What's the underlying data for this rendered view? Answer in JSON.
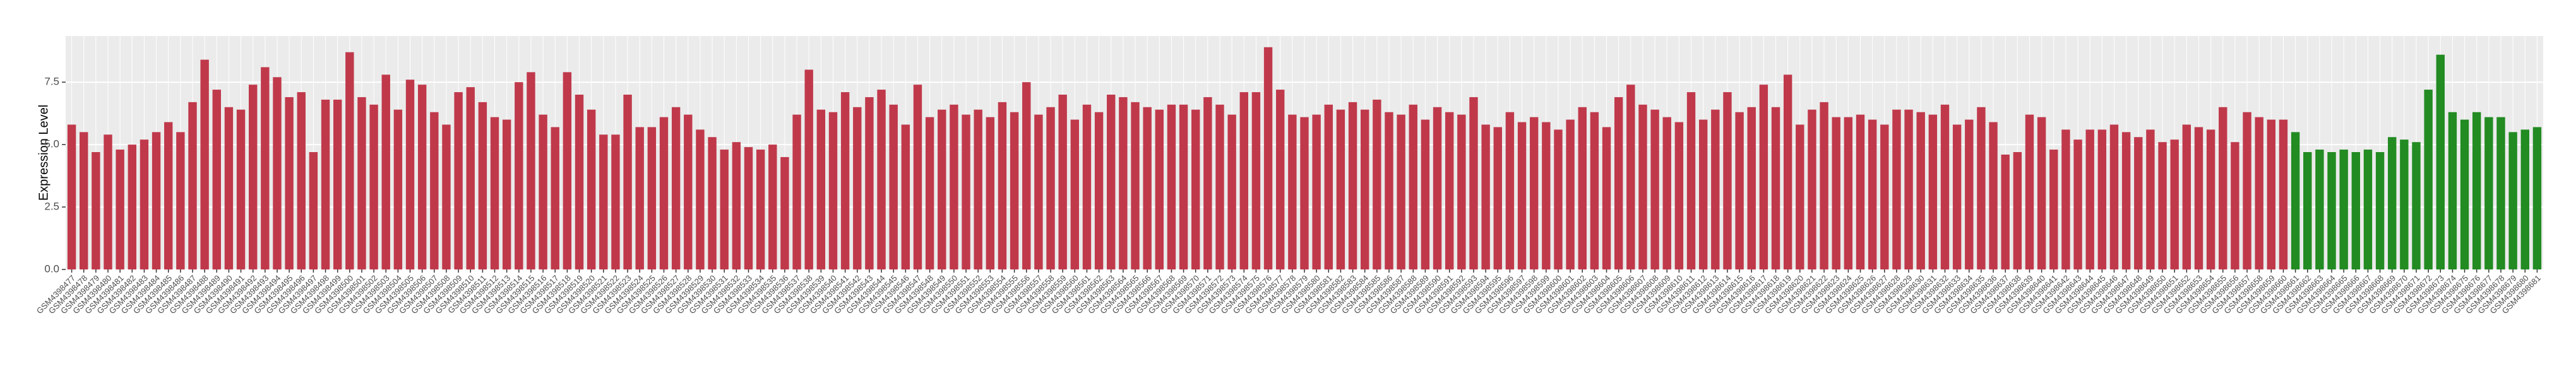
{
  "chart_data": {
    "type": "bar",
    "y_label": "Expression Level",
    "categories": [
      "GSM4398477",
      "GSM4398478",
      "GSM4398479",
      "GSM4398480",
      "GSM4398481",
      "GSM4398482",
      "GSM4398483",
      "GSM4398484",
      "GSM4398485",
      "GSM4398486",
      "GSM4398487",
      "GSM4398488",
      "GSM4398489",
      "GSM4398490",
      "GSM4398491",
      "GSM4398492",
      "GSM4398493",
      "GSM4398494",
      "GSM4398495",
      "GSM4398496",
      "GSM4398497",
      "GSM4398498",
      "GSM4398499",
      "GSM4398500",
      "GSM4398501",
      "GSM4398502",
      "GSM4398503",
      "GSM4398504",
      "GSM4398505",
      "GSM4398506",
      "GSM4398507",
      "GSM4398508",
      "GSM4398509",
      "GSM4398510",
      "GSM4398511",
      "GSM4398512",
      "GSM4398513",
      "GSM4398514",
      "GSM4398515",
      "GSM4398516",
      "GSM4398517",
      "GSM4398518",
      "GSM4398519",
      "GSM4398520",
      "GSM4398521",
      "GSM4398522",
      "GSM4398523",
      "GSM4398524",
      "GSM4398525",
      "GSM4398526",
      "GSM4398527",
      "GSM4398528",
      "GSM4398529",
      "GSM4398530",
      "GSM4398531",
      "GSM4398532",
      "GSM4398533",
      "GSM4398534",
      "GSM4398535",
      "GSM4398536",
      "GSM4398537",
      "GSM4398538",
      "GSM4398539",
      "GSM4398540",
      "GSM4398541",
      "GSM4398542",
      "GSM4398543",
      "GSM4398544",
      "GSM4398545",
      "GSM4398546",
      "GSM4398547",
      "GSM4398548",
      "GSM4398549",
      "GSM4398550",
      "GSM4398551",
      "GSM4398552",
      "GSM4398553",
      "GSM4398554",
      "GSM4398555",
      "GSM4398556",
      "GSM4398557",
      "GSM4398558",
      "GSM4398559",
      "GSM4398560",
      "GSM4398561",
      "GSM4398562",
      "GSM4398563",
      "GSM4398564",
      "GSM4398565",
      "GSM4398566",
      "GSM4398567",
      "GSM4398568",
      "GSM4398569",
      "GSM4398570",
      "GSM4398571",
      "GSM4398572",
      "GSM4398573",
      "GSM4398574",
      "GSM4398575",
      "GSM4398576",
      "GSM4398577",
      "GSM4398578",
      "GSM4398579",
      "GSM4398580",
      "GSM4398581",
      "GSM4398582",
      "GSM4398583",
      "GSM4398584",
      "GSM4398585",
      "GSM4398586",
      "GSM4398587",
      "GSM4398588",
      "GSM4398589",
      "GSM4398590",
      "GSM4398591",
      "GSM4398592",
      "GSM4398593",
      "GSM4398594",
      "GSM4398595",
      "GSM4398596",
      "GSM4398597",
      "GSM4398598",
      "GSM4398599",
      "GSM4398600",
      "GSM4398601",
      "GSM4398602",
      "GSM4398603",
      "GSM4398604",
      "GSM4398605",
      "GSM4398606",
      "GSM4398607",
      "GSM4398608",
      "GSM4398609",
      "GSM4398610",
      "GSM4398611",
      "GSM4398612",
      "GSM4398613",
      "GSM4398614",
      "GSM4398615",
      "GSM4398616",
      "GSM4398617",
      "GSM4398618",
      "GSM4398619",
      "GSM4398620",
      "GSM4398621",
      "GSM4398622",
      "GSM4398623",
      "GSM4398624",
      "GSM4398625",
      "GSM4398626",
      "GSM4398627",
      "GSM4398628",
      "GSM4398629",
      "GSM4398630",
      "GSM4398631",
      "GSM4398632",
      "GSM4398633",
      "GSM4398634",
      "GSM4398635",
      "GSM4398636",
      "GSM4398637",
      "GSM4398638",
      "GSM4398639",
      "GSM4398640",
      "GSM4398641",
      "GSM4398642",
      "GSM4398643",
      "GSM4398644",
      "GSM4398645",
      "GSM4398646",
      "GSM4398647",
      "GSM4398648",
      "GSM4398649",
      "GSM4398650",
      "GSM4398651",
      "GSM4398652",
      "GSM4398653",
      "GSM4398654",
      "GSM4398655",
      "GSM4398656",
      "GSM4398657",
      "GSM4398658",
      "GSM4398659",
      "GSM4398660",
      "GSM4398661",
      "GSM4398662",
      "GSM4398663",
      "GSM4398664",
      "GSM4398665",
      "GSM4398666",
      "GSM4398667",
      "GSM4398668",
      "GSM4398669",
      "GSM4398670",
      "GSM4398671",
      "GSM4398672",
      "GSM4398673",
      "GSM4398674",
      "GSM4398675",
      "GSM4398676",
      "GSM4398677",
      "GSM4398678",
      "GSM4398679",
      "GSM4398680",
      "GSM4398681"
    ],
    "series": [
      {
        "color": "#c0394b",
        "values": [
          5.8,
          5.5,
          4.7,
          5.4,
          4.8,
          5.0,
          5.2,
          5.5,
          5.9,
          5.5,
          6.7,
          8.4,
          7.2,
          6.5,
          6.4,
          7.4,
          8.1,
          7.7,
          6.9,
          7.1,
          4.7,
          6.8,
          6.8,
          8.7,
          6.9,
          6.6,
          7.8,
          6.4,
          7.6,
          7.4,
          6.3,
          5.8,
          7.1,
          7.3,
          6.7,
          6.1,
          6.0,
          7.5,
          7.9,
          6.2,
          5.7,
          7.9,
          7.0,
          6.4,
          5.4,
          5.4,
          7.0,
          5.7,
          5.7,
          6.1,
          6.5,
          6.2,
          5.6,
          5.3,
          4.8,
          5.1,
          4.9,
          4.8,
          5.0,
          4.5,
          6.2,
          8.0,
          6.4,
          6.3,
          7.1,
          6.5,
          6.9,
          7.2,
          6.6,
          5.8,
          7.4,
          6.1,
          6.4,
          6.6,
          6.2,
          6.4,
          6.1,
          6.7,
          6.3,
          7.5,
          6.2,
          6.5,
          7.0,
          6.0,
          6.6,
          6.3,
          7.0,
          6.9,
          6.7,
          6.5,
          6.4,
          6.6,
          6.6,
          6.4,
          6.9,
          6.6,
          6.2,
          7.1,
          7.1,
          8.9,
          7.2,
          6.2,
          6.1,
          6.2,
          6.6,
          6.4,
          6.7,
          6.4,
          6.8,
          6.3,
          6.2,
          6.6,
          6.0,
          6.5,
          6.3,
          6.2,
          6.9,
          5.8,
          5.7,
          6.3,
          5.9,
          6.1,
          5.9,
          5.6,
          6.0,
          6.5,
          6.3,
          5.7,
          6.9,
          7.4,
          6.6,
          6.4,
          6.1,
          5.9,
          7.1,
          6.0,
          6.4,
          7.1,
          6.3,
          6.5,
          7.4,
          6.5,
          7.8,
          5.8,
          6.4,
          6.7,
          6.1,
          6.1,
          6.2,
          6.0,
          5.8,
          6.4,
          6.4,
          6.3,
          6.2,
          6.6,
          5.8,
          6.0,
          6.5,
          5.9,
          4.6,
          4.7,
          6.2,
          6.1,
          4.8,
          5.6,
          5.2,
          5.6,
          5.6,
          5.8,
          5.5,
          5.3,
          5.6,
          5.1,
          5.2,
          5.8,
          5.7,
          5.6,
          6.5,
          5.1,
          6.3,
          6.1,
          6.0,
          6.0,
          null,
          null,
          null,
          null,
          null,
          null,
          null,
          null,
          null,
          null,
          null,
          null,
          null,
          null,
          null,
          null,
          null,
          null,
          null,
          null,
          null
        ]
      },
      {
        "color": "#228b22",
        "values": [
          null,
          null,
          null,
          null,
          null,
          null,
          null,
          null,
          null,
          null,
          null,
          null,
          null,
          null,
          null,
          null,
          null,
          null,
          null,
          null,
          null,
          null,
          null,
          null,
          null,
          null,
          null,
          null,
          null,
          null,
          null,
          null,
          null,
          null,
          null,
          null,
          null,
          null,
          null,
          null,
          null,
          null,
          null,
          null,
          null,
          null,
          null,
          null,
          null,
          null,
          null,
          null,
          null,
          null,
          null,
          null,
          null,
          null,
          null,
          null,
          null,
          null,
          null,
          null,
          null,
          null,
          null,
          null,
          null,
          null,
          null,
          null,
          null,
          null,
          null,
          null,
          null,
          null,
          null,
          null,
          null,
          null,
          null,
          null,
          null,
          null,
          null,
          null,
          null,
          null,
          null,
          null,
          null,
          null,
          null,
          null,
          null,
          null,
          null,
          null,
          null,
          null,
          null,
          null,
          null,
          null,
          null,
          null,
          null,
          null,
          null,
          null,
          null,
          null,
          null,
          null,
          null,
          null,
          null,
          null,
          null,
          null,
          null,
          null,
          null,
          null,
          null,
          null,
          null,
          null,
          null,
          null,
          null,
          null,
          null,
          null,
          null,
          null,
          null,
          null,
          null,
          null,
          null,
          null,
          null,
          null,
          null,
          null,
          null,
          null,
          null,
          null,
          null,
          null,
          null,
          null,
          null,
          null,
          null,
          null,
          null,
          null,
          null,
          null,
          null,
          null,
          null,
          null,
          null,
          null,
          null,
          null,
          null,
          null,
          null,
          null,
          null,
          null,
          null,
          null,
          null,
          null,
          null,
          null,
          5.5,
          4.7,
          4.8,
          4.7,
          4.8,
          4.7,
          4.8,
          4.7,
          5.3,
          5.2,
          5.1,
          7.2,
          8.6,
          6.3,
          6.0,
          6.3,
          6.1,
          6.1,
          5.5,
          5.6,
          5.7
        ]
      }
    ],
    "ylim": [
      0,
      9.35
    ],
    "yticks": [
      {
        "value": 0,
        "label": "0.0"
      },
      2.5,
      {
        "value": 5,
        "label": "5.0"
      },
      7.5
    ],
    "grid": true
  }
}
